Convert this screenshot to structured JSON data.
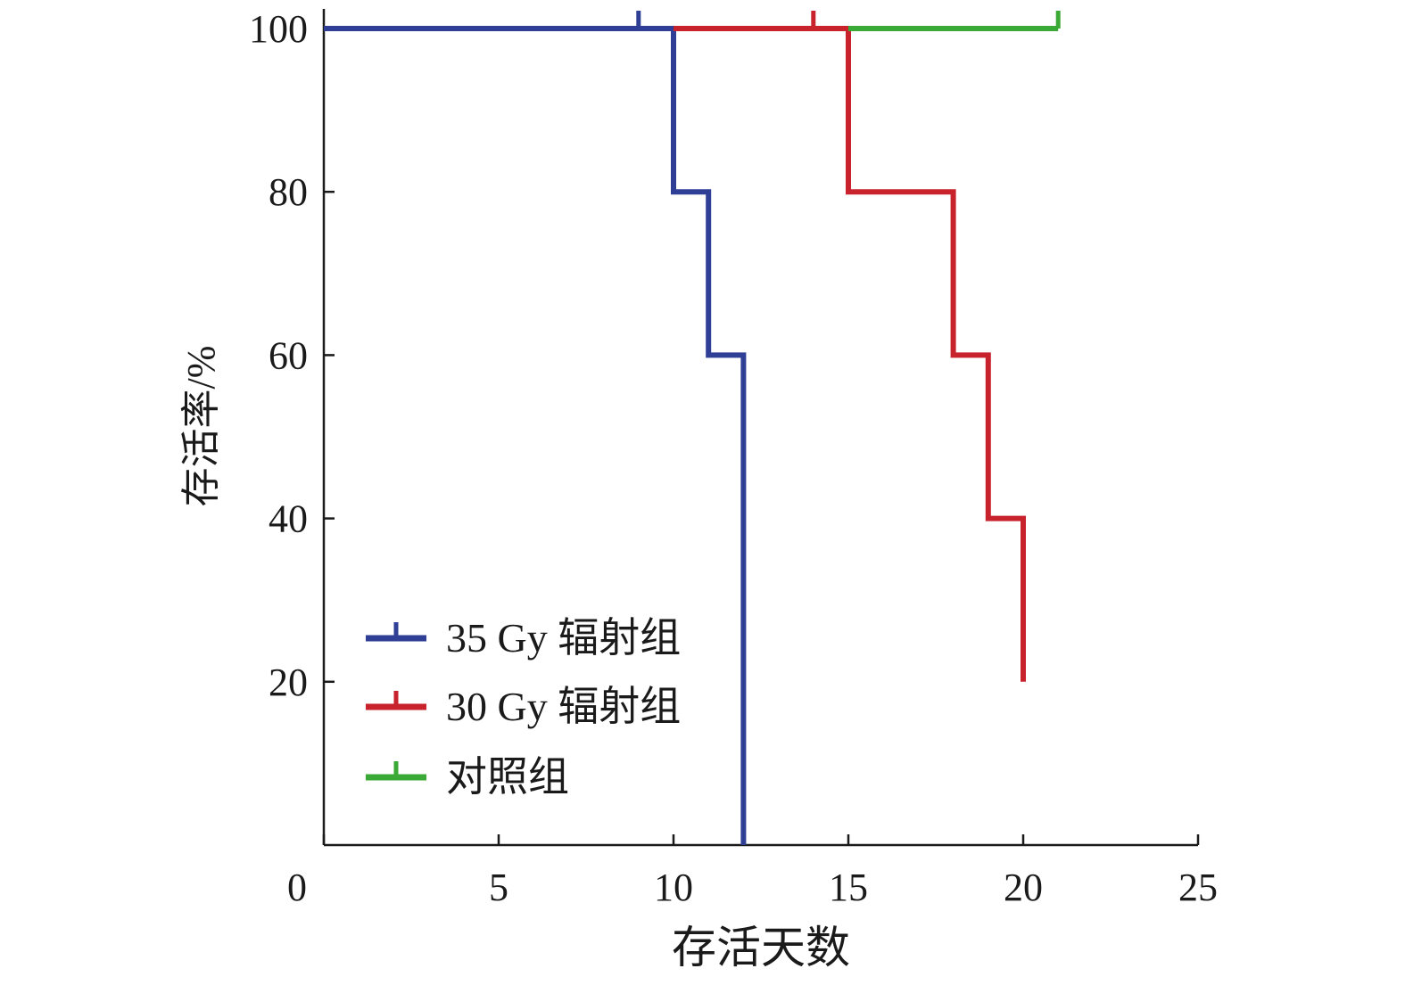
{
  "chart_data": {
    "type": "line",
    "step": true,
    "xlabel": "存活天数",
    "ylabel": "存活率/%",
    "xlim": [
      0,
      25
    ],
    "ylim": [
      0,
      100
    ],
    "x_ticks": [
      0,
      5,
      10,
      15,
      20,
      25
    ],
    "y_ticks": [
      20,
      40,
      60,
      80,
      100
    ],
    "grid": false,
    "legend_position": "bottom-left",
    "series": [
      {
        "name": "35 Gy 辐射组",
        "color": "#2e3f95",
        "x": [
          0,
          10,
          10,
          11,
          11,
          12,
          12
        ],
        "y": [
          100,
          100,
          80,
          80,
          60,
          60,
          0
        ],
        "censored": [
          {
            "x": 9,
            "y": 100
          }
        ]
      },
      {
        "name": "30 Gy 辐射组",
        "color": "#c8232c",
        "x": [
          10,
          15,
          15,
          18,
          18,
          19,
          19,
          20,
          20
        ],
        "y": [
          100,
          100,
          80,
          80,
          60,
          60,
          40,
          40,
          20
        ],
        "censored": [
          {
            "x": 14,
            "y": 100
          }
        ]
      },
      {
        "name": "对照组",
        "color": "#3aa935",
        "x": [
          15,
          21
        ],
        "y": [
          100,
          100
        ],
        "censored": [
          {
            "x": 21,
            "y": 100
          }
        ]
      }
    ]
  }
}
